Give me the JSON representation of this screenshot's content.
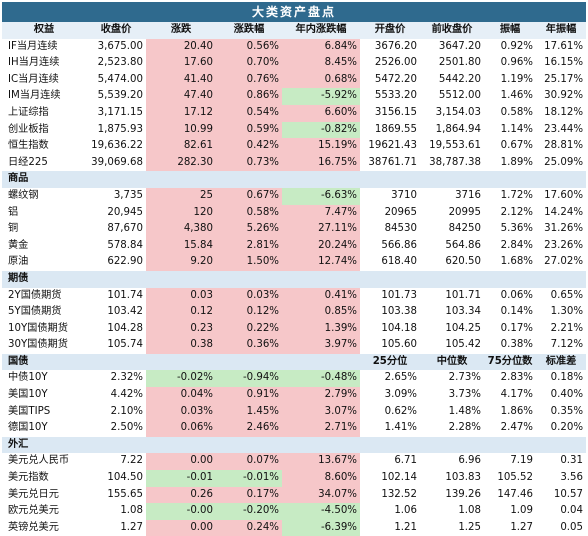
{
  "chart_data": {
    "type": "table",
    "title": "大类资产盘点",
    "columns": [
      "权益",
      "收盘价",
      "涨跌",
      "涨跌幅",
      "年内涨跌幅",
      "开盘价",
      "前收盘价",
      "振幅",
      "年振幅"
    ],
    "sections": [
      {
        "name": "权益",
        "header": [
          "权益",
          "收盘价",
          "涨跌",
          "涨跌幅",
          "年内涨跌幅",
          "开盘价",
          "前收盘价",
          "振幅",
          "年振幅"
        ],
        "rows": [
          {
            "name": "IF当月连续",
            "close": "3,675.00",
            "chg": "20.40",
            "chg_pct": "0.56%",
            "ytd": "6.84%",
            "open": "3676.20",
            "prev": "3647.20",
            "amp": "0.92%",
            "yamp": "17.61%",
            "chg_dir": "up",
            "ytd_dir": "up"
          },
          {
            "name": "IH当月连续",
            "close": "2,523.80",
            "chg": "17.60",
            "chg_pct": "0.70%",
            "ytd": "8.45%",
            "open": "2526.00",
            "prev": "2501.80",
            "amp": "0.96%",
            "yamp": "16.15%",
            "chg_dir": "up",
            "ytd_dir": "up"
          },
          {
            "name": "IC当月连续",
            "close": "5,474.00",
            "chg": "41.40",
            "chg_pct": "0.76%",
            "ytd": "0.68%",
            "open": "5472.20",
            "prev": "5442.20",
            "amp": "1.19%",
            "yamp": "25.17%",
            "chg_dir": "up",
            "ytd_dir": "up"
          },
          {
            "name": "IM当月连续",
            "close": "5,539.20",
            "chg": "47.40",
            "chg_pct": "0.86%",
            "ytd": "-5.92%",
            "open": "5533.20",
            "prev": "5512.00",
            "amp": "1.46%",
            "yamp": "30.92%",
            "chg_dir": "up",
            "ytd_dir": "dn"
          },
          {
            "name": "上证综指",
            "close": "3,171.15",
            "chg": "17.12",
            "chg_pct": "0.54%",
            "ytd": "6.60%",
            "open": "3156.15",
            "prev": "3,154.03",
            "amp": "0.58%",
            "yamp": "18.12%",
            "chg_dir": "up",
            "ytd_dir": "up"
          },
          {
            "name": "创业板指",
            "close": "1,875.93",
            "chg": "10.99",
            "chg_pct": "0.59%",
            "ytd": "-0.82%",
            "open": "1869.55",
            "prev": "1,864.94",
            "amp": "1.14%",
            "yamp": "23.44%",
            "chg_dir": "up",
            "ytd_dir": "dn"
          },
          {
            "name": "恒生指数",
            "close": "19,636.22",
            "chg": "82.61",
            "chg_pct": "0.42%",
            "ytd": "15.19%",
            "open": "19621.43",
            "prev": "19,553.61",
            "amp": "0.67%",
            "yamp": "28.81%",
            "chg_dir": "up",
            "ytd_dir": "up"
          },
          {
            "name": "日经225",
            "close": "39,069.68",
            "chg": "282.30",
            "chg_pct": "0.73%",
            "ytd": "16.75%",
            "open": "38761.71",
            "prev": "38,787.38",
            "amp": "1.89%",
            "yamp": "25.09%",
            "chg_dir": "up",
            "ytd_dir": "up"
          }
        ]
      },
      {
        "name": "商品",
        "rows": [
          {
            "name": "螺纹钢",
            "close": "3,735",
            "chg": "25",
            "chg_pct": "0.67%",
            "ytd": "-6.63%",
            "open": "3710",
            "prev": "3716",
            "amp": "1.72%",
            "yamp": "17.60%",
            "chg_dir": "up",
            "ytd_dir": "dn"
          },
          {
            "name": "铝",
            "close": "20,945",
            "chg": "120",
            "chg_pct": "0.58%",
            "ytd": "7.47%",
            "open": "20965",
            "prev": "20995",
            "amp": "2.12%",
            "yamp": "14.24%",
            "chg_dir": "up",
            "ytd_dir": "up"
          },
          {
            "name": "铜",
            "close": "87,670",
            "chg": "4,380",
            "chg_pct": "5.26%",
            "ytd": "27.11%",
            "open": "84530",
            "prev": "84250",
            "amp": "5.36%",
            "yamp": "31.26%",
            "chg_dir": "up",
            "ytd_dir": "up"
          },
          {
            "name": "黄金",
            "close": "578.84",
            "chg": "15.84",
            "chg_pct": "2.81%",
            "ytd": "20.24%",
            "open": "566.86",
            "prev": "564.86",
            "amp": "2.84%",
            "yamp": "23.26%",
            "chg_dir": "up",
            "ytd_dir": "up"
          },
          {
            "name": "原油",
            "close": "622.90",
            "chg": "9.20",
            "chg_pct": "1.50%",
            "ytd": "12.74%",
            "open": "618.40",
            "prev": "620.50",
            "amp": "1.68%",
            "yamp": "27.02%",
            "chg_dir": "up",
            "ytd_dir": "up"
          }
        ]
      },
      {
        "name": "期债",
        "rows": [
          {
            "name": "2Y国债期货",
            "close": "101.74",
            "chg": "0.03",
            "chg_pct": "0.03%",
            "ytd": "0.41%",
            "open": "101.73",
            "prev": "101.71",
            "amp": "0.06%",
            "yamp": "0.65%",
            "chg_dir": "up",
            "ytd_dir": "up"
          },
          {
            "name": "5Y国债期货",
            "close": "103.42",
            "chg": "0.12",
            "chg_pct": "0.12%",
            "ytd": "0.85%",
            "open": "103.38",
            "prev": "103.34",
            "amp": "0.14%",
            "yamp": "1.30%",
            "chg_dir": "up",
            "ytd_dir": "up"
          },
          {
            "name": "10Y国债期货",
            "close": "104.28",
            "chg": "0.23",
            "chg_pct": "0.22%",
            "ytd": "1.39%",
            "open": "104.18",
            "prev": "104.25",
            "amp": "0.17%",
            "yamp": "2.21%",
            "chg_dir": "up",
            "ytd_dir": "up"
          },
          {
            "name": "30Y国债期货",
            "close": "105.74",
            "chg": "0.38",
            "chg_pct": "0.36%",
            "ytd": "3.97%",
            "open": "105.60",
            "prev": "105.42",
            "amp": "0.38%",
            "yamp": "7.12%",
            "chg_dir": "up",
            "ytd_dir": "up"
          }
        ]
      },
      {
        "name": "国债",
        "extra_header": [
          "25分位",
          "中位数",
          "75分位数",
          "标准差"
        ],
        "rows": [
          {
            "name": "中债10Y",
            "close": "2.32%",
            "chg": "-0.02%",
            "chg_pct": "-0.94%",
            "ytd": "-0.48%",
            "open": "2.65%",
            "prev": "2.73%",
            "amp": "2.83%",
            "yamp": "0.18%",
            "chg_dir": "dn",
            "ytd_dir": "dn"
          },
          {
            "name": "美国10Y",
            "close": "4.42%",
            "chg": "0.04%",
            "chg_pct": "0.91%",
            "ytd": "2.79%",
            "open": "3.09%",
            "prev": "3.73%",
            "amp": "4.17%",
            "yamp": "0.40%",
            "chg_dir": "up",
            "ytd_dir": "up"
          },
          {
            "name": "美国TIPS",
            "close": "2.10%",
            "chg": "0.03%",
            "chg_pct": "1.45%",
            "ytd": "3.07%",
            "open": "0.62%",
            "prev": "1.48%",
            "amp": "1.86%",
            "yamp": "0.35%",
            "chg_dir": "up",
            "ytd_dir": "up"
          },
          {
            "name": "德国10Y",
            "close": "2.50%",
            "chg": "0.06%",
            "chg_pct": "2.46%",
            "ytd": "2.71%",
            "open": "1.41%",
            "prev": "2.28%",
            "amp": "2.47%",
            "yamp": "0.20%",
            "chg_dir": "up",
            "ytd_dir": "up"
          }
        ]
      },
      {
        "name": "外汇",
        "rows": [
          {
            "name": "美元兑人民币",
            "close": "7.22",
            "chg": "0.00",
            "chg_pct": "0.07%",
            "ytd": "13.67%",
            "open": "6.71",
            "prev": "6.96",
            "amp": "7.19",
            "yamp": "0.31",
            "chg_dir": "up",
            "ytd_dir": "up"
          },
          {
            "name": "美元指数",
            "close": "104.50",
            "chg": "-0.01",
            "chg_pct": "-0.01%",
            "ytd": "8.60%",
            "open": "102.14",
            "prev": "103.83",
            "amp": "105.52",
            "yamp": "3.56",
            "chg_dir": "dn",
            "ytd_dir": "up"
          },
          {
            "name": "美元兑日元",
            "close": "155.65",
            "chg": "0.26",
            "chg_pct": "0.17%",
            "ytd": "34.07%",
            "open": "132.52",
            "prev": "139.26",
            "amp": "147.46",
            "yamp": "10.57",
            "chg_dir": "up",
            "ytd_dir": "up"
          },
          {
            "name": "欧元兑美元",
            "close": "1.08",
            "chg": "-0.00",
            "chg_pct": "-0.20%",
            "ytd": "-4.50%",
            "open": "1.06",
            "prev": "1.08",
            "amp": "1.09",
            "yamp": "0.04",
            "chg_dir": "dn",
            "ytd_dir": "dn"
          },
          {
            "name": "英镑兑美元",
            "close": "1.27",
            "chg": "0.00",
            "chg_pct": "0.24%",
            "ytd": "-6.39%",
            "open": "1.21",
            "prev": "1.25",
            "amp": "1.27",
            "yamp": "0.05",
            "chg_dir": "up",
            "ytd_dir": "dn"
          }
        ]
      }
    ]
  },
  "colors": {
    "title_bg": "#2f6a8e",
    "header_bg": "#e6eff7",
    "section_bg": "#dbe8f3",
    "up_bg": "#f6c7c9",
    "down_bg": "#c7ebc4"
  }
}
